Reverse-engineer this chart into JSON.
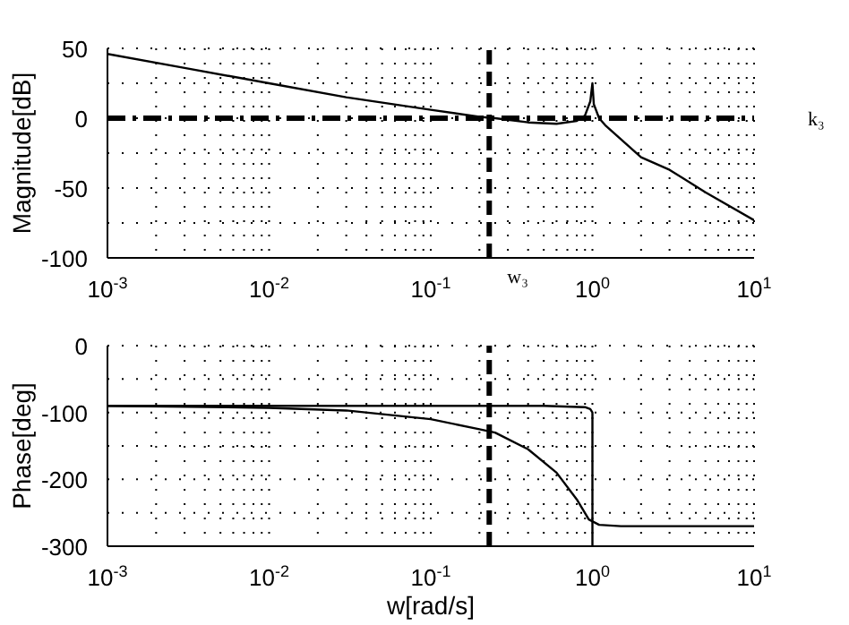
{
  "chart_data": [
    {
      "type": "line",
      "ylabel": "Magnitude[dB]",
      "log": "x",
      "xlim": [
        0.001,
        10
      ],
      "ylim": [
        -100,
        50
      ],
      "xticks": [
        {
          "value": 0.001,
          "label": "10$^{-3}$"
        },
        {
          "value": 0.002,
          "label": null
        },
        {
          "value": 0.003,
          "label": null
        },
        {
          "value": 0.004,
          "label": null
        },
        {
          "value": 0.005,
          "label": null
        },
        {
          "value": 0.006,
          "label": null
        },
        {
          "value": 0.007,
          "label": null
        },
        {
          "value": 0.008,
          "label": null
        },
        {
          "value": 0.009,
          "label": null
        },
        {
          "value": 0.01,
          "label": "10$^{-2}$"
        },
        {
          "value": 0.02,
          "label": null
        },
        {
          "value": 0.03,
          "label": null
        },
        {
          "value": 0.04,
          "label": null
        },
        {
          "value": 0.05,
          "label": null
        },
        {
          "value": 0.06,
          "label": null
        },
        {
          "value": 0.07,
          "label": null
        },
        {
          "value": 0.08,
          "label": null
        },
        {
          "value": 0.09,
          "label": null
        },
        {
          "value": 0.1,
          "label": "10$^{-1}$"
        },
        {
          "value": 0.2,
          "label": null
        },
        {
          "value": 0.3,
          "label": null
        },
        {
          "value": 0.4,
          "label": null
        },
        {
          "value": 0.5,
          "label": null
        },
        {
          "value": 0.6,
          "label": null
        },
        {
          "value": 0.7,
          "label": null
        },
        {
          "value": 0.8,
          "label": null
        },
        {
          "value": 0.9,
          "label": null
        },
        {
          "value": 1,
          "label": "10$^{0}$"
        },
        {
          "value": 2,
          "label": null
        },
        {
          "value": 3,
          "label": null
        },
        {
          "value": 4,
          "label": null
        },
        {
          "value": 5,
          "label": null
        },
        {
          "value": 6,
          "label": null
        },
        {
          "value": 7,
          "label": null
        },
        {
          "value": 8,
          "label": null
        },
        {
          "value": 9,
          "label": null
        },
        {
          "value": 10,
          "label": "10$^{1}$"
        }
      ],
      "yticks": [
        -100,
        {
          "value": -75,
          "label": null
        },
        -50,
        {
          "value": -25,
          "label": null
        },
        0,
        {
          "value": 25,
          "label": null
        },
        50
      ],
      "grid": true,
      "line_style": "solid",
      "marker": "none",
      "ref_lines": [
        {
          "axis": "x",
          "value": 0.23,
          "label": "w₃",
          "line_style": "dashed",
          "color": "#000000"
        },
        {
          "axis": "y",
          "value": 0,
          "label": "k₃",
          "line_style": "dashed",
          "color": "#000000"
        }
      ],
      "series": [
        {
          "color": "#000000",
          "x": [
            0.001,
            0.003,
            0.01,
            0.03,
            0.1,
            0.2,
            0.25,
            0.4,
            0.6,
            0.8,
            0.9,
            0.97,
            1.0,
            1.02,
            1.1,
            1.2,
            2,
            3,
            5,
            10
          ],
          "values": [
            46,
            36,
            25,
            15,
            6,
            1,
            0,
            -3,
            -4,
            -2,
            2,
            12,
            25,
            10,
            0,
            -5,
            -28,
            -37,
            -53,
            -73
          ]
        }
      ]
    },
    {
      "type": "line",
      "xlabel": "w[rad/s]",
      "ylabel": "Phase[deg]",
      "log": "x",
      "xlim": [
        0.001,
        10
      ],
      "ylim": [
        -300,
        0
      ],
      "xticks": [
        {
          "value": 0.001,
          "label": "10$^{-3}$"
        },
        {
          "value": 0.002,
          "label": null
        },
        {
          "value": 0.003,
          "label": null
        },
        {
          "value": 0.004,
          "label": null
        },
        {
          "value": 0.005,
          "label": null
        },
        {
          "value": 0.006,
          "label": null
        },
        {
          "value": 0.007,
          "label": null
        },
        {
          "value": 0.008,
          "label": null
        },
        {
          "value": 0.009,
          "label": null
        },
        {
          "value": 0.01,
          "label": "10$^{-2}$"
        },
        {
          "value": 0.02,
          "label": null
        },
        {
          "value": 0.03,
          "label": null
        },
        {
          "value": 0.04,
          "label": null
        },
        {
          "value": 0.05,
          "label": null
        },
        {
          "value": 0.06,
          "label": null
        },
        {
          "value": 0.07,
          "label": null
        },
        {
          "value": 0.08,
          "label": null
        },
        {
          "value": 0.09,
          "label": null
        },
        {
          "value": 0.1,
          "label": "10$^{-1}$"
        },
        {
          "value": 0.2,
          "label": null
        },
        {
          "value": 0.3,
          "label": null
        },
        {
          "value": 0.4,
          "label": null
        },
        {
          "value": 0.5,
          "label": null
        },
        {
          "value": 0.6,
          "label": null
        },
        {
          "value": 0.7,
          "label": null
        },
        {
          "value": 0.8,
          "label": null
        },
        {
          "value": 0.9,
          "label": null
        },
        {
          "value": 1,
          "label": "10$^{0}$"
        },
        {
          "value": 2,
          "label": null
        },
        {
          "value": 3,
          "label": null
        },
        {
          "value": 4,
          "label": null
        },
        {
          "value": 5,
          "label": null
        },
        {
          "value": 6,
          "label": null
        },
        {
          "value": 7,
          "label": null
        },
        {
          "value": 8,
          "label": null
        },
        {
          "value": 9,
          "label": null
        },
        {
          "value": 10,
          "label": "10$^{1}$"
        }
      ],
      "yticks": [
        -300,
        {
          "value": -250,
          "label": null
        },
        -200,
        {
          "value": -150,
          "label": null
        },
        -100,
        {
          "value": -50,
          "label": null
        },
        0
      ],
      "grid": true,
      "line_style": "solid",
      "marker": "none",
      "ref_lines": [
        {
          "axis": "x",
          "value": 0.23,
          "label": null,
          "line_style": "dashed",
          "color": "#000000"
        }
      ],
      "series": [
        {
          "color": "#000000",
          "x": [
            0.001,
            0.01,
            0.1,
            0.5,
            0.9,
            0.97,
            1,
            1
          ],
          "values": [
            -90,
            -90,
            -90,
            -90,
            -92,
            -95,
            -100,
            -300
          ]
        },
        {
          "color": "#000000",
          "x": [
            0.001,
            0.01,
            0.03,
            0.1,
            0.2,
            0.25,
            0.4,
            0.6,
            0.8,
            0.95,
            1.1,
            1.5,
            10
          ],
          "values": [
            -90,
            -93,
            -97,
            -110,
            -125,
            -130,
            -155,
            -190,
            -230,
            -260,
            -268,
            -270,
            -270
          ]
        }
      ]
    }
  ]
}
